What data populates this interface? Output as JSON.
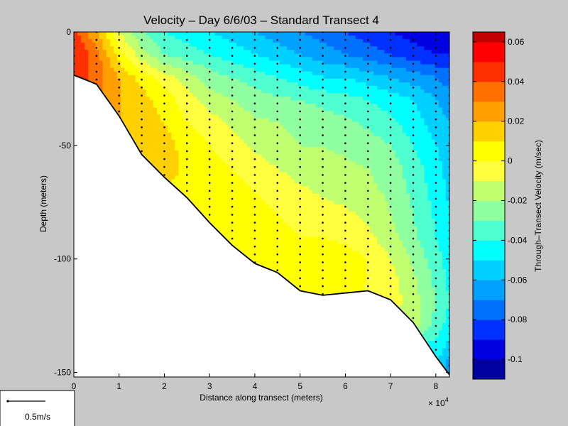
{
  "chart_data": {
    "type": "heatmap",
    "title": "Velocity – Day 6/6/03 – Standard Transect 4",
    "xlabel": "Distance along transect (meters)",
    "ylabel": "Depth (meters)",
    "x_exponent_label": "× 10",
    "x_exponent": "4",
    "x_scale": 10000,
    "xlim": [
      0,
      8.3
    ],
    "ylim": [
      -152,
      0
    ],
    "x_ticks": [
      "0",
      "1",
      "2",
      "3",
      "4",
      "5",
      "6",
      "7",
      "8"
    ],
    "x_tick_values": [
      0,
      1,
      2,
      3,
      4,
      5,
      6,
      7,
      8
    ],
    "y_ticks": [
      "0",
      "-50",
      "-100",
      "-150"
    ],
    "y_tick_values": [
      0,
      -50,
      -100,
      -150
    ],
    "bottom_profile": {
      "x": [
        0,
        0.5,
        1,
        1.5,
        2,
        2.5,
        3,
        3.5,
        4,
        4.5,
        5,
        5.5,
        6,
        6.5,
        7,
        7.5,
        8,
        8.3
      ],
      "depth": [
        -19,
        -23,
        -37,
        -54,
        -64,
        -73,
        -84,
        -94,
        -102,
        -106,
        -114,
        -116,
        -115,
        -114,
        -118,
        -128,
        -143,
        -151
      ]
    },
    "station_x": [
      0,
      0.5,
      1,
      1.5,
      2,
      2.5,
      3,
      3.5,
      4,
      4.5,
      5,
      5.5,
      6,
      6.5,
      7,
      7.5,
      8,
      8.3
    ],
    "velocity_grid": {
      "x": [
        0,
        0.5,
        1,
        1.5,
        2,
        2.5,
        3,
        3.5,
        4,
        4.5,
        5,
        5.5,
        6,
        6.5,
        7,
        7.5,
        8,
        8.3
      ],
      "depth": [
        0,
        -10,
        -20,
        -30,
        -40,
        -50,
        -60,
        -70,
        -80,
        -90,
        -100,
        -110,
        -120,
        -130,
        -140,
        -150
      ],
      "values": [
        [
          0.045,
          0.02,
          -0.01,
          -0.03,
          -0.04,
          -0.045,
          -0.05,
          -0.055,
          -0.06,
          -0.065,
          -0.07,
          -0.075,
          -0.08,
          -0.085,
          -0.09,
          -0.095,
          -0.1,
          -0.1
        ],
        [
          0.05,
          0.035,
          0.005,
          -0.015,
          -0.03,
          -0.035,
          -0.04,
          -0.045,
          -0.05,
          -0.055,
          -0.06,
          -0.065,
          -0.07,
          -0.075,
          -0.08,
          -0.085,
          -0.09,
          -0.09
        ],
        [
          null,
          0.035,
          0.02,
          0.005,
          -0.005,
          -0.015,
          -0.025,
          -0.03,
          -0.035,
          -0.04,
          -0.045,
          -0.05,
          -0.05,
          -0.055,
          -0.06,
          -0.065,
          -0.07,
          -0.075
        ],
        [
          null,
          null,
          0.02,
          0.015,
          0.005,
          -0.005,
          -0.015,
          -0.02,
          -0.025,
          -0.028,
          -0.03,
          -0.033,
          -0.036,
          -0.04,
          -0.045,
          -0.05,
          -0.06,
          -0.065
        ],
        [
          null,
          null,
          null,
          0.015,
          0.01,
          0.0,
          -0.005,
          -0.013,
          -0.018,
          -0.02,
          -0.022,
          -0.025,
          -0.028,
          -0.032,
          -0.038,
          -0.045,
          -0.055,
          -0.06
        ],
        [
          null,
          null,
          null,
          null,
          0.015,
          0.005,
          0.0,
          -0.005,
          -0.012,
          -0.018,
          -0.02,
          -0.02,
          -0.022,
          -0.025,
          -0.03,
          -0.04,
          -0.05,
          -0.058
        ],
        [
          null,
          null,
          null,
          null,
          null,
          0.008,
          0.003,
          0.0,
          -0.005,
          -0.01,
          -0.015,
          -0.017,
          -0.018,
          -0.02,
          -0.025,
          -0.035,
          -0.046,
          -0.055
        ],
        [
          null,
          null,
          null,
          null,
          null,
          null,
          0.005,
          0.003,
          0.0,
          -0.003,
          -0.008,
          -0.012,
          -0.015,
          -0.018,
          -0.022,
          -0.033,
          -0.044,
          -0.052
        ],
        [
          null,
          null,
          null,
          null,
          null,
          null,
          null,
          0.005,
          0.002,
          0.0,
          -0.003,
          -0.005,
          -0.008,
          -0.013,
          -0.02,
          -0.03,
          -0.042,
          -0.05
        ],
        [
          null,
          null,
          null,
          null,
          null,
          null,
          null,
          null,
          0.003,
          0.002,
          0.0,
          0.0,
          -0.002,
          -0.008,
          -0.016,
          -0.028,
          -0.04,
          -0.048
        ],
        [
          null,
          null,
          null,
          null,
          null,
          null,
          null,
          null,
          null,
          null,
          0.003,
          0.004,
          0.004,
          0.0,
          -0.01,
          -0.022,
          -0.036,
          -0.045
        ],
        [
          null,
          null,
          null,
          null,
          null,
          null,
          null,
          null,
          null,
          null,
          null,
          null,
          null,
          null,
          -0.005,
          -0.018,
          -0.032,
          -0.042
        ],
        [
          null,
          null,
          null,
          null,
          null,
          null,
          null,
          null,
          null,
          null,
          null,
          null,
          null,
          null,
          null,
          -0.015,
          -0.03,
          -0.04
        ],
        [
          null,
          null,
          null,
          null,
          null,
          null,
          null,
          null,
          null,
          null,
          null,
          null,
          null,
          null,
          null,
          null,
          -0.035,
          -0.045
        ],
        [
          null,
          null,
          null,
          null,
          null,
          null,
          null,
          null,
          null,
          null,
          null,
          null,
          null,
          null,
          null,
          null,
          -0.045,
          -0.055
        ],
        [
          null,
          null,
          null,
          null,
          null,
          null,
          null,
          null,
          null,
          null,
          null,
          null,
          null,
          null,
          null,
          null,
          null,
          -0.07
        ]
      ]
    },
    "colorbar": {
      "label": "Through–Transect Velocity (m/sec)",
      "min": -0.11,
      "max": 0.065,
      "step": 0.01,
      "ticks": [
        "0.06",
        "0.04",
        "0.02",
        "0",
        "-0.02",
        "-0.04",
        "-0.06",
        "-0.08",
        "-0.1"
      ],
      "tick_values": [
        0.06,
        0.04,
        0.02,
        0,
        -0.02,
        -0.04,
        -0.06,
        -0.08,
        -0.1
      ],
      "colors": [
        "#0000a0",
        "#0000e0",
        "#0030ff",
        "#0070ff",
        "#00a0ff",
        "#00d0ff",
        "#00ffff",
        "#50ffd0",
        "#90ffa0",
        "#c0ff70",
        "#ffff40",
        "#ffff00",
        "#ffd000",
        "#ffa000",
        "#ff7000",
        "#ff3000",
        "#ff0000",
        "#c00000"
      ]
    },
    "scale_legend": {
      "label": "0.5m/s"
    }
  }
}
